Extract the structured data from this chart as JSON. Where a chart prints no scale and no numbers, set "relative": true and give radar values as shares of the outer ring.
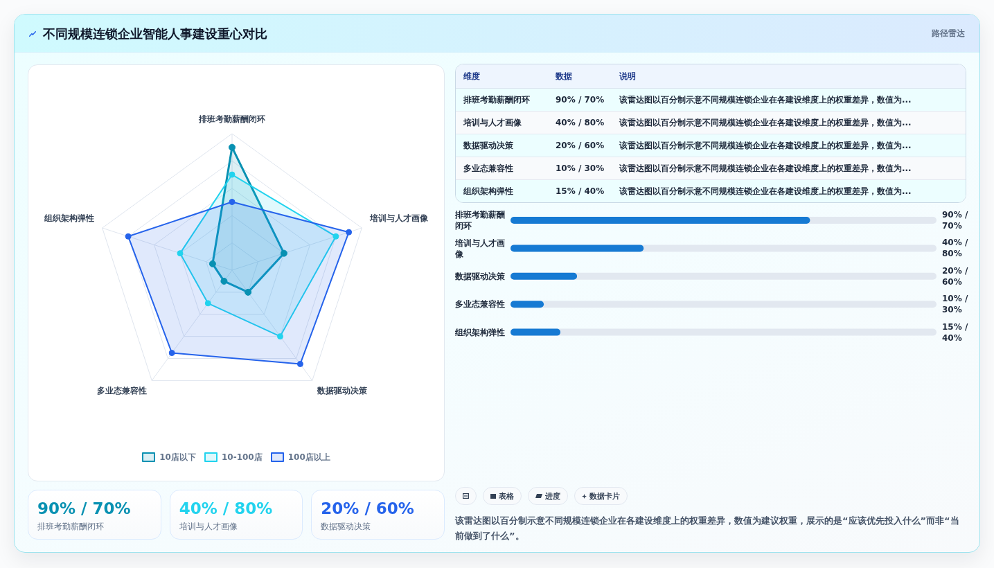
{
  "chart_data": [
    {
      "type": "other",
      "title": "不同规模连锁企业智能人事建设重心对比",
      "subtitle": "路径雷达"
    },
    {
      "type": "radar",
      "categories": [
        "排班考勤薪酬闭环",
        "培训与人才画像",
        "数据驱动决策",
        "多业态兼容性",
        "组织架构弹性"
      ],
      "relative": true,
      "series": [
        {
          "name": "10店以下",
          "color": "#0891b2",
          "values": [
            0.9,
            0.4,
            0.2,
            0.1,
            0.15
          ]
        },
        {
          "name": "10-100店",
          "color": "#22d3ee",
          "values": [
            0.7,
            0.8,
            0.6,
            0.3,
            0.4
          ]
        },
        {
          "name": "100店以上",
          "color": "#2563eb",
          "values": [
            0.5,
            0.9,
            0.85,
            0.75,
            0.8
          ]
        }
      ],
      "grid": true,
      "legend": "bottom",
      "marker": "circle"
    },
    {
      "type": "other",
      "categories": [
        "维度",
        "数据",
        "说明"
      ],
      "cell_labels": [
        [
          "排班考勤薪酬闭环",
          "90% / 70%",
          "该雷达图以百分制示意不同规模连锁企业在各建设维度上的权重差异，数值为..."
        ],
        [
          "培训与人才画像",
          "40% / 80%",
          "该雷达图以百分制示意不同规模连锁企业在各建设维度上的权重差异，数值为..."
        ],
        [
          "数据驱动决策",
          "20% / 60%",
          "该雷达图以百分制示意不同规模连锁企业在各建设维度上的权重差异，数值为..."
        ],
        [
          "多业态兼容性",
          "10% / 30%",
          "该雷达图以百分制示意不同规模连锁企业在各建设维度上的权重差异，数值为..."
        ],
        [
          "组织架构弹性",
          "15% / 40%",
          "该雷达图以百分制示意不同规模连锁企业在各建设维度上的权重差异，数值为..."
        ]
      ]
    },
    {
      "type": "bar",
      "orientation": "horizontal",
      "categories": [
        "排班考勤薪酬闭环",
        "培训与人才画像",
        "数据驱动决策",
        "多业态兼容性",
        "组织架构弹性"
      ],
      "values": [
        90,
        40,
        20,
        10,
        15
      ],
      "value_labels": [
        "90% / 70%",
        "40% / 80%",
        "20% / 60%",
        "10% / 30%",
        "15% / 40%"
      ],
      "xlim": [
        0,
        128
      ],
      "tick_labels": "y",
      "color": "#167ad3"
    },
    {
      "type": "other",
      "categories": [
        "排班考勤薪酬闭环",
        "培训与人才画像",
        "数据驱动决策"
      ],
      "value_labels": [
        "90% / 70%",
        "40% / 80%",
        "20% / 60%"
      ]
    },
    {
      "type": "other",
      "categories": [
        null,
        "表格",
        "进度",
        "数据卡片"
      ],
      "annotations": [
        "该雷达图以百分制示意不同规模连锁企业在各建设维度上的权重差异，数值为建议权重，展示的是“应该优先投入什么”而非“当前做到了什么”。"
      ]
    }
  ]
}
